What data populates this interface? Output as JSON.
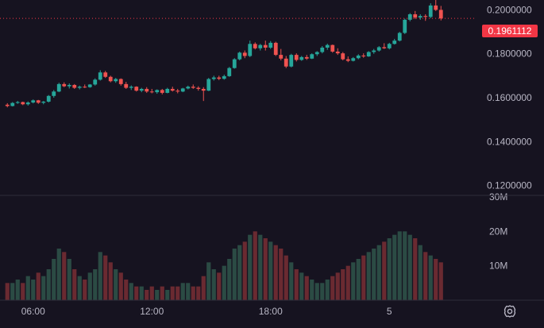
{
  "colors": {
    "background": "#161320",
    "up": "#26a69a",
    "down": "#ef5350",
    "vol_up": "#2b4b44",
    "vol_down": "#6a2a31",
    "axis_text": "#b8b6c4",
    "price_line": "#f23645"
  },
  "last_price": {
    "value": 0.1961112,
    "label": "0.1961112"
  },
  "settings_icon": "gear-icon",
  "chart_data": {
    "type": "candlestick",
    "price_axis": {
      "ticks": [
        "0.2000000",
        "0.1800000",
        "0.1600000",
        "0.1400000",
        "0.1200000"
      ],
      "tick_values": [
        0.2,
        0.18,
        0.16,
        0.14,
        0.12
      ],
      "range": [
        0.1155,
        0.2045
      ]
    },
    "volume_axis": {
      "ticks": [
        "30M",
        "20M",
        "10M"
      ],
      "tick_values": [
        30000000,
        20000000,
        10000000
      ],
      "range": [
        0,
        30000000
      ]
    },
    "time_axis": {
      "ticks": [
        "06:00",
        "12:00",
        "18:00",
        "5"
      ],
      "tick_index": [
        5,
        28,
        51,
        74
      ]
    },
    "candles": [
      [
        0.1568,
        0.1575,
        0.1556,
        0.1562
      ],
      [
        0.1562,
        0.158,
        0.156,
        0.1576
      ],
      [
        0.1576,
        0.1585,
        0.1572,
        0.158
      ],
      [
        0.158,
        0.1582,
        0.1566,
        0.157
      ],
      [
        0.157,
        0.1583,
        0.1564,
        0.1578
      ],
      [
        0.1578,
        0.1592,
        0.1574,
        0.1588
      ],
      [
        0.1588,
        0.159,
        0.1572,
        0.1577
      ],
      [
        0.1577,
        0.1585,
        0.157,
        0.1582
      ],
      [
        0.1582,
        0.1612,
        0.1578,
        0.1608
      ],
      [
        0.1608,
        0.1635,
        0.16,
        0.1628
      ],
      [
        0.1628,
        0.1668,
        0.1625,
        0.1662
      ],
      [
        0.1662,
        0.167,
        0.1648,
        0.1652
      ],
      [
        0.1652,
        0.1665,
        0.1642,
        0.1658
      ],
      [
        0.1658,
        0.1662,
        0.164,
        0.1645
      ],
      [
        0.1645,
        0.1655,
        0.1638,
        0.165
      ],
      [
        0.165,
        0.166,
        0.1644,
        0.1648
      ],
      [
        0.1648,
        0.1662,
        0.1645,
        0.166
      ],
      [
        0.166,
        0.1688,
        0.1655,
        0.1682
      ],
      [
        0.1682,
        0.1725,
        0.1678,
        0.1715
      ],
      [
        0.1715,
        0.1722,
        0.169,
        0.1695
      ],
      [
        0.1695,
        0.17,
        0.167,
        0.1675
      ],
      [
        0.1675,
        0.169,
        0.1668,
        0.1685
      ],
      [
        0.1685,
        0.1688,
        0.1655,
        0.1662
      ],
      [
        0.1662,
        0.1672,
        0.164,
        0.1645
      ],
      [
        0.1645,
        0.1656,
        0.1635,
        0.165
      ],
      [
        0.165,
        0.1652,
        0.1628,
        0.1632
      ],
      [
        0.1632,
        0.1645,
        0.1625,
        0.164
      ],
      [
        0.164,
        0.1648,
        0.1622,
        0.1628
      ],
      [
        0.1628,
        0.164,
        0.162,
        0.1625
      ],
      [
        0.1625,
        0.1638,
        0.1618,
        0.1635
      ],
      [
        0.1635,
        0.164,
        0.1615,
        0.1622
      ],
      [
        0.1622,
        0.1645,
        0.162,
        0.164
      ],
      [
        0.164,
        0.165,
        0.1628,
        0.1632
      ],
      [
        0.1632,
        0.164,
        0.162,
        0.1628
      ],
      [
        0.1628,
        0.1645,
        0.1625,
        0.1642
      ],
      [
        0.1642,
        0.1655,
        0.1638,
        0.165
      ],
      [
        0.165,
        0.166,
        0.164,
        0.1645
      ],
      [
        0.1645,
        0.1652,
        0.1632,
        0.164
      ],
      [
        0.164,
        0.1648,
        0.1585,
        0.1632
      ],
      [
        0.1632,
        0.169,
        0.163,
        0.1685
      ],
      [
        0.1685,
        0.17,
        0.1678,
        0.1692
      ],
      [
        0.1692,
        0.17,
        0.168,
        0.1686
      ],
      [
        0.1686,
        0.1705,
        0.1682,
        0.1698
      ],
      [
        0.1698,
        0.174,
        0.1695,
        0.1735
      ],
      [
        0.1735,
        0.178,
        0.1732,
        0.1775
      ],
      [
        0.1775,
        0.181,
        0.177,
        0.1805
      ],
      [
        0.1805,
        0.1815,
        0.178,
        0.179
      ],
      [
        0.179,
        0.186,
        0.1785,
        0.1845
      ],
      [
        0.1845,
        0.1852,
        0.182,
        0.1825
      ],
      [
        0.1825,
        0.1845,
        0.1815,
        0.184
      ],
      [
        0.184,
        0.186,
        0.1815,
        0.1828
      ],
      [
        0.1828,
        0.1858,
        0.1822,
        0.185
      ],
      [
        0.185,
        0.1855,
        0.179,
        0.1795
      ],
      [
        0.1795,
        0.1822,
        0.177,
        0.1778
      ],
      [
        0.1778,
        0.179,
        0.1735,
        0.1742
      ],
      [
        0.1742,
        0.18,
        0.1738,
        0.1795
      ],
      [
        0.1795,
        0.1802,
        0.1765,
        0.1772
      ],
      [
        0.1772,
        0.179,
        0.1768,
        0.1785
      ],
      [
        0.1785,
        0.1795,
        0.1772,
        0.1778
      ],
      [
        0.1778,
        0.1802,
        0.1776,
        0.1798
      ],
      [
        0.1798,
        0.1812,
        0.179,
        0.1808
      ],
      [
        0.1808,
        0.1835,
        0.1802,
        0.1828
      ],
      [
        0.1828,
        0.1846,
        0.1818,
        0.184
      ],
      [
        0.184,
        0.1842,
        0.1805,
        0.181
      ],
      [
        0.181,
        0.1825,
        0.1795,
        0.1802
      ],
      [
        0.1802,
        0.1808,
        0.177,
        0.1775
      ],
      [
        0.1775,
        0.1788,
        0.1762,
        0.1768
      ],
      [
        0.1768,
        0.1785,
        0.1765,
        0.178
      ],
      [
        0.178,
        0.1798,
        0.1775,
        0.1792
      ],
      [
        0.1792,
        0.1802,
        0.1782,
        0.1788
      ],
      [
        0.1788,
        0.1812,
        0.1786,
        0.1808
      ],
      [
        0.1808,
        0.1822,
        0.18,
        0.1815
      ],
      [
        0.1815,
        0.1835,
        0.181,
        0.183
      ],
      [
        0.183,
        0.1848,
        0.1822,
        0.1825
      ],
      [
        0.1825,
        0.185,
        0.182,
        0.1845
      ],
      [
        0.1845,
        0.1868,
        0.1842,
        0.186
      ],
      [
        0.186,
        0.19,
        0.1856,
        0.1895
      ],
      [
        0.1895,
        0.196,
        0.189,
        0.1955
      ],
      [
        0.1955,
        0.1985,
        0.1948,
        0.198
      ],
      [
        0.198,
        0.1995,
        0.1958,
        0.1965
      ],
      [
        0.1965,
        0.198,
        0.1955,
        0.1972
      ],
      [
        0.1972,
        0.198,
        0.195,
        0.1968
      ],
      [
        0.1968,
        0.203,
        0.1962,
        0.202
      ],
      [
        0.202,
        0.2055,
        0.1995,
        0.2
      ],
      [
        0.2,
        0.2018,
        0.1952,
        0.1961
      ]
    ],
    "volumes": [
      5,
      5,
      6,
      5,
      7,
      6,
      8,
      7,
      9,
      12,
      15,
      14,
      12,
      9,
      7,
      6,
      8,
      9,
      14,
      13,
      11,
      9,
      8,
      6,
      5,
      4,
      4,
      3,
      4,
      3,
      4,
      3,
      4,
      4,
      5,
      5,
      4,
      4,
      7,
      11,
      9,
      8,
      10,
      12,
      15,
      16,
      17,
      19,
      20,
      19,
      18,
      17,
      16,
      15,
      13,
      11,
      9,
      8,
      7,
      6,
      5,
      5,
      6,
      7,
      8,
      9,
      10,
      11,
      12,
      13,
      14,
      15,
      16,
      17,
      18,
      19,
      20,
      20,
      19,
      18,
      16,
      14,
      13,
      12,
      11
    ],
    "volume_scale": 1000000
  }
}
